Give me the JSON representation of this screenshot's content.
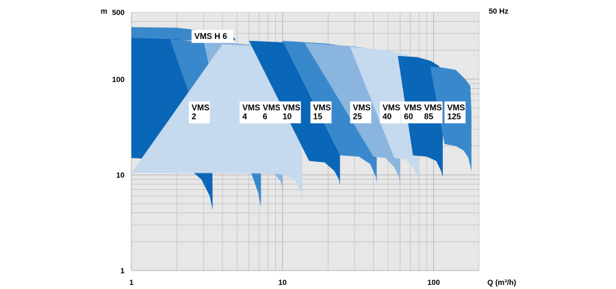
{
  "chart_data": {
    "type": "area",
    "frequency_label": "50 Hz",
    "ylabel": "m",
    "xlabel": "Q (m³/h)",
    "x_scale": "log",
    "y_scale": "log",
    "xlim": [
      1,
      200
    ],
    "ylim": [
      1,
      500
    ],
    "x_ticks": [
      {
        "value": 1,
        "label": "1"
      },
      {
        "value": 10,
        "label": "10"
      },
      {
        "value": 100,
        "label": "100"
      }
    ],
    "y_ticks": [
      {
        "value": 1,
        "label": "1"
      },
      {
        "value": 10,
        "label": "10"
      },
      {
        "value": 100,
        "label": "100"
      },
      {
        "value": 500,
        "label": "500"
      }
    ],
    "grid": true,
    "colors": {
      "background": "#e7e7e7",
      "grid": "#b3b3b3",
      "dark": "#0a66b6",
      "mid": "#3a88cc",
      "light": "#8ab5de",
      "pale": "#c5d9ef",
      "label_box": "#ffffff"
    },
    "series": [
      {
        "name": "VMS H 6",
        "label_lines": [
          "VMS H 6"
        ],
        "color": "mid",
        "label_at": [
          2.5,
          280
        ],
        "top": [
          [
            1,
            350
          ],
          [
            2,
            345
          ],
          [
            3,
            320
          ],
          [
            4,
            295
          ],
          [
            4.8,
            272
          ],
          [
            4.9,
            255
          ]
        ],
        "bottom": [
          [
            1,
            255
          ],
          [
            4.9,
            255
          ]
        ]
      },
      {
        "name": "VMS 2",
        "label_lines": [
          "VMS",
          "2"
        ],
        "color": "dark",
        "label_at": [
          2.4,
          45
        ],
        "top": [
          [
            1,
            270
          ],
          [
            2,
            262
          ],
          [
            2.8,
            230
          ],
          [
            3.2,
            180
          ],
          [
            3.4,
            100
          ]
        ],
        "bottom": [
          [
            1,
            15
          ],
          [
            1.5,
            14.5
          ],
          [
            2.2,
            13
          ],
          [
            2.9,
            9
          ],
          [
            3.3,
            6
          ],
          [
            3.45,
            4.3
          ]
        ]
      },
      {
        "name": "VMS 4",
        "label_lines": [
          "VMS",
          "4"
        ],
        "color": "mid",
        "label_at": [
          5.2,
          45
        ],
        "top": [
          [
            1.8,
            262
          ],
          [
            4,
            235
          ],
          [
            5.8,
            200
          ],
          [
            6.8,
            160
          ],
          [
            7.2,
            90
          ]
        ],
        "bottom": [
          [
            3.5,
            13
          ],
          [
            5,
            12.5
          ],
          [
            6.2,
            10.5
          ],
          [
            6.9,
            6.5
          ],
          [
            7.2,
            4.6
          ]
        ]
      },
      {
        "name": "VMS 6",
        "label_lines": [
          "VMS",
          "6"
        ],
        "color": "light",
        "label_at": [
          7.1,
          45
        ],
        "top": [
          [
            3,
            255
          ],
          [
            6,
            230
          ],
          [
            8.5,
            200
          ],
          [
            9.6,
            170
          ],
          [
            10,
            95
          ]
        ],
        "bottom": [
          [
            4.5,
            12.5
          ],
          [
            7,
            12
          ],
          [
            8.8,
            10.5
          ],
          [
            9.7,
            8.5
          ],
          [
            10,
            7.2
          ]
        ]
      },
      {
        "name": "VMS 10",
        "label_lines": [
          "VMS",
          "10"
        ],
        "color": "pale",
        "label_at": [
          9.6,
          45
        ],
        "top": [
          [
            4,
            232
          ],
          [
            8,
            218
          ],
          [
            11.5,
            190
          ],
          [
            13,
            155
          ],
          [
            13.5,
            95
          ]
        ],
        "bottom": [
          [
            1,
            10.5
          ],
          [
            6,
            10.4
          ],
          [
            9.5,
            10.2
          ],
          [
            12,
            9
          ],
          [
            13.3,
            6.5
          ],
          [
            13.5,
            5
          ]
        ]
      },
      {
        "name": "VMS 15",
        "label_lines": [
          "VMS",
          "15"
        ],
        "color": "dark",
        "label_at": [
          15.3,
          45
        ],
        "top": [
          [
            6,
            252
          ],
          [
            12,
            240
          ],
          [
            18,
            215
          ],
          [
            22,
            180
          ],
          [
            24,
            100
          ]
        ],
        "bottom": [
          [
            15,
            14
          ],
          [
            19,
            13.5
          ],
          [
            22,
            11
          ],
          [
            23.6,
            9
          ],
          [
            24,
            7.8
          ]
        ]
      },
      {
        "name": "VMS 25",
        "label_lines": [
          "VMS",
          "25"
        ],
        "color": "mid",
        "label_at": [
          28,
          45
        ],
        "top": [
          [
            10,
            252
          ],
          [
            20,
            235
          ],
          [
            32,
            210
          ],
          [
            40,
            178
          ],
          [
            42,
            100
          ]
        ],
        "bottom": [
          [
            24,
            16
          ],
          [
            32,
            15.5
          ],
          [
            38,
            13
          ],
          [
            41.5,
            9.5
          ],
          [
            42,
            8.2
          ]
        ]
      },
      {
        "name": "VMS 40",
        "label_lines": [
          "VMS",
          "40"
        ],
        "color": "light",
        "label_at": [
          44,
          45
        ],
        "top": [
          [
            14,
            240
          ],
          [
            30,
            220
          ],
          [
            48,
            195
          ],
          [
            56,
            165
          ],
          [
            60,
            100
          ]
        ],
        "bottom": [
          [
            40,
            15.5
          ],
          [
            48,
            15
          ],
          [
            55,
            12
          ],
          [
            59,
            9.5
          ],
          [
            60,
            7.8
          ]
        ]
      },
      {
        "name": "VMS 60",
        "label_lines": [
          "VMS",
          "60"
        ],
        "color": "pale",
        "label_at": [
          61,
          45
        ],
        "top": [
          [
            28,
            218
          ],
          [
            50,
            200
          ],
          [
            68,
            178
          ],
          [
            76,
            155
          ],
          [
            79,
            100
          ]
        ],
        "bottom": [
          [
            55,
            15
          ],
          [
            65,
            14.5
          ],
          [
            73,
            12
          ],
          [
            78,
            9.5
          ],
          [
            79,
            7.8
          ]
        ]
      },
      {
        "name": "VMS 85",
        "label_lines": [
          "VMS",
          "85"
        ],
        "color": "dark",
        "label_at": [
          83,
          45
        ],
        "top": [
          [
            58,
            175
          ],
          [
            78,
            170
          ],
          [
            96,
            155
          ],
          [
            108,
            138
          ],
          [
            115,
            120
          ]
        ],
        "bottom": [
          [
            73,
            16
          ],
          [
            90,
            15.5
          ],
          [
            104,
            14
          ],
          [
            112,
            11
          ],
          [
            115,
            9.5
          ]
        ]
      },
      {
        "name": "VMS 125",
        "label_lines": [
          "VMS",
          "125"
        ],
        "color": "mid",
        "label_at": [
          118,
          45
        ],
        "top": [
          [
            95,
            135
          ],
          [
            115,
            132
          ],
          [
            140,
            125
          ],
          [
            162,
            100
          ],
          [
            175,
            85
          ],
          [
            178,
            45
          ]
        ],
        "bottom": [
          [
            118,
            21
          ],
          [
            140,
            20
          ],
          [
            158,
            18
          ],
          [
            170,
            15
          ],
          [
            178,
            11
          ]
        ]
      }
    ]
  }
}
